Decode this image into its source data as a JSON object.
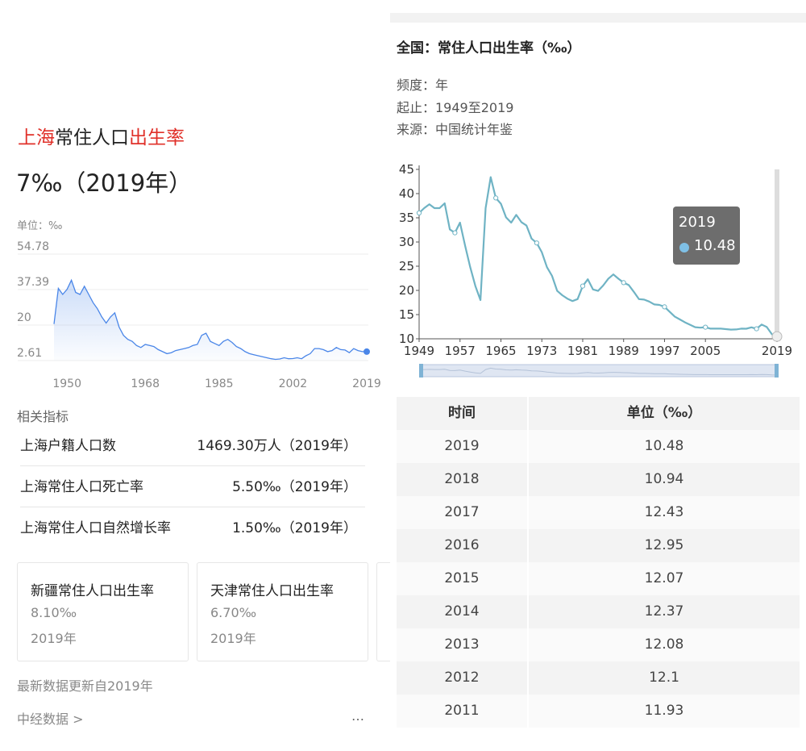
{
  "left": {
    "title_prefix": "上海",
    "title_mid": "常住人口",
    "title_suffix": "出生率",
    "headline": "7‰（2019年）",
    "unit": "单位：‰",
    "related_title": "相关指标",
    "related": [
      {
        "name": "上海户籍人口数",
        "value": "1469.30万人（2019年）"
      },
      {
        "name": "上海常住人口死亡率",
        "value": "5.50‰（2019年）"
      },
      {
        "name": "上海常住人口自然增长率",
        "value": "1.50‰（2019年）"
      }
    ],
    "cards": [
      {
        "name": "新疆常住人口出生率",
        "value": "8.10‰",
        "year": "2019年"
      },
      {
        "name": "天津常住人口出生率",
        "value": "6.70‰",
        "year": "2019年"
      }
    ],
    "update_note": "最新数据更新自2019年",
    "source_link": "中经数据 >",
    "more_icon": "…",
    "colors": {
      "accent_red": "#e0312a",
      "line": "#4a86e8"
    }
  },
  "right": {
    "title": "全国：常住人口出生率（‰）",
    "frequency": "频度：年",
    "range": "起止：1949至2019",
    "source": "来源：中国统计年鉴",
    "tooltip": {
      "year": "2019",
      "value": "10.48"
    },
    "table_header": {
      "time": "时间",
      "unit": "单位（‰）"
    },
    "table_rows": [
      {
        "year": "2019",
        "value": "10.48"
      },
      {
        "year": "2018",
        "value": "10.94"
      },
      {
        "year": "2017",
        "value": "12.43"
      },
      {
        "year": "2016",
        "value": "12.95"
      },
      {
        "year": "2015",
        "value": "12.07"
      },
      {
        "year": "2014",
        "value": "12.37"
      },
      {
        "year": "2013",
        "value": "12.08"
      },
      {
        "year": "2012",
        "value": "12.1"
      },
      {
        "year": "2011",
        "value": "11.93"
      }
    ],
    "colors": {
      "line": "#6fb3c4",
      "tooltip_bg": "#6d6d6d",
      "slider": "#7fb3d5"
    }
  },
  "chart_data": [
    {
      "type": "area",
      "xlabel": "",
      "ylabel": "",
      "x_ticks": [
        "1950",
        "1968",
        "1985",
        "2002",
        "2019"
      ],
      "y_ticks": [
        "54.78",
        "37.39",
        "20",
        "2.61"
      ],
      "ylim": [
        2.61,
        54.78
      ],
      "xlim": [
        1947,
        2019
      ],
      "grid": true,
      "x": [
        1947,
        1948,
        1949,
        1950,
        1951,
        1952,
        1953,
        1954,
        1955,
        1956,
        1957,
        1958,
        1959,
        1960,
        1961,
        1962,
        1963,
        1964,
        1965,
        1966,
        1967,
        1968,
        1969,
        1970,
        1971,
        1972,
        1973,
        1974,
        1975,
        1976,
        1977,
        1978,
        1979,
        1980,
        1981,
        1982,
        1983,
        1984,
        1985,
        1986,
        1987,
        1988,
        1989,
        1990,
        1991,
        1992,
        1993,
        1994,
        1995,
        1996,
        1997,
        1998,
        1999,
        2000,
        2001,
        2002,
        2003,
        2004,
        2005,
        2006,
        2007,
        2008,
        2009,
        2010,
        2011,
        2012,
        2013,
        2014,
        2015,
        2016,
        2017,
        2018,
        2019
      ],
      "values": [
        20.5,
        38,
        35,
        37.5,
        42,
        36,
        35,
        39,
        35,
        31,
        28,
        24,
        21,
        24,
        26,
        19,
        15,
        13,
        12,
        10,
        9,
        10.5,
        10,
        9.5,
        8,
        7,
        6,
        6.5,
        7.5,
        8,
        8.5,
        9,
        10,
        10.5,
        15,
        16,
        12,
        11,
        10,
        12,
        13,
        11.5,
        9.5,
        8.5,
        7,
        6,
        5.5,
        5,
        4.5,
        4,
        3.5,
        3.2,
        3.4,
        4,
        3.5,
        3.6,
        4,
        3.5,
        5,
        6,
        8.5,
        8.5,
        8,
        7,
        7.5,
        9,
        8,
        7.8,
        6.5,
        8.5,
        7.5,
        7,
        7
      ]
    },
    {
      "type": "line",
      "title": "全国：常住人口出生率（‰）",
      "xlabel": "",
      "ylabel": "",
      "x_ticks": [
        "1949",
        "1957",
        "1965",
        "1973",
        "1981",
        "1989",
        "1997",
        "2005",
        "2019"
      ],
      "y_ticks": [
        "10",
        "15",
        "20",
        "25",
        "30",
        "35",
        "40",
        "45"
      ],
      "ylim": [
        10,
        45
      ],
      "xlim": [
        1949,
        2019
      ],
      "grid": false,
      "x": [
        1949,
        1950,
        1951,
        1952,
        1953,
        1954,
        1955,
        1956,
        1957,
        1958,
        1959,
        1960,
        1961,
        1962,
        1963,
        1964,
        1965,
        1966,
        1967,
        1968,
        1969,
        1970,
        1971,
        1972,
        1973,
        1974,
        1975,
        1976,
        1977,
        1978,
        1979,
        1980,
        1981,
        1982,
        1983,
        1984,
        1985,
        1986,
        1987,
        1988,
        1989,
        1990,
        1991,
        1992,
        1993,
        1994,
        1995,
        1996,
        1997,
        1998,
        1999,
        2000,
        2001,
        2002,
        2003,
        2004,
        2005,
        2006,
        2007,
        2008,
        2009,
        2010,
        2011,
        2012,
        2013,
        2014,
        2015,
        2016,
        2017,
        2018,
        2019
      ],
      "values": [
        36,
        37,
        37.8,
        37,
        37,
        38,
        32.6,
        31.9,
        34.0,
        29.2,
        24.8,
        20.9,
        18.0,
        37.0,
        43.4,
        39.1,
        37.9,
        35.1,
        34.0,
        35.6,
        34.1,
        33.4,
        30.7,
        29.8,
        27.9,
        24.8,
        23.0,
        19.9,
        19.0,
        18.3,
        17.8,
        18.2,
        20.9,
        22.3,
        20.2,
        19.9,
        21.0,
        22.4,
        23.3,
        22.4,
        21.6,
        21.1,
        19.7,
        18.2,
        18.1,
        17.7,
        17.1,
        17.0,
        16.6,
        15.6,
        14.6,
        14.0,
        13.4,
        12.9,
        12.4,
        12.3,
        12.4,
        12.1,
        12.1,
        12.1,
        12.0,
        11.9,
        11.93,
        12.1,
        12.08,
        12.37,
        12.07,
        12.95,
        12.43,
        10.94,
        10.48
      ]
    }
  ]
}
